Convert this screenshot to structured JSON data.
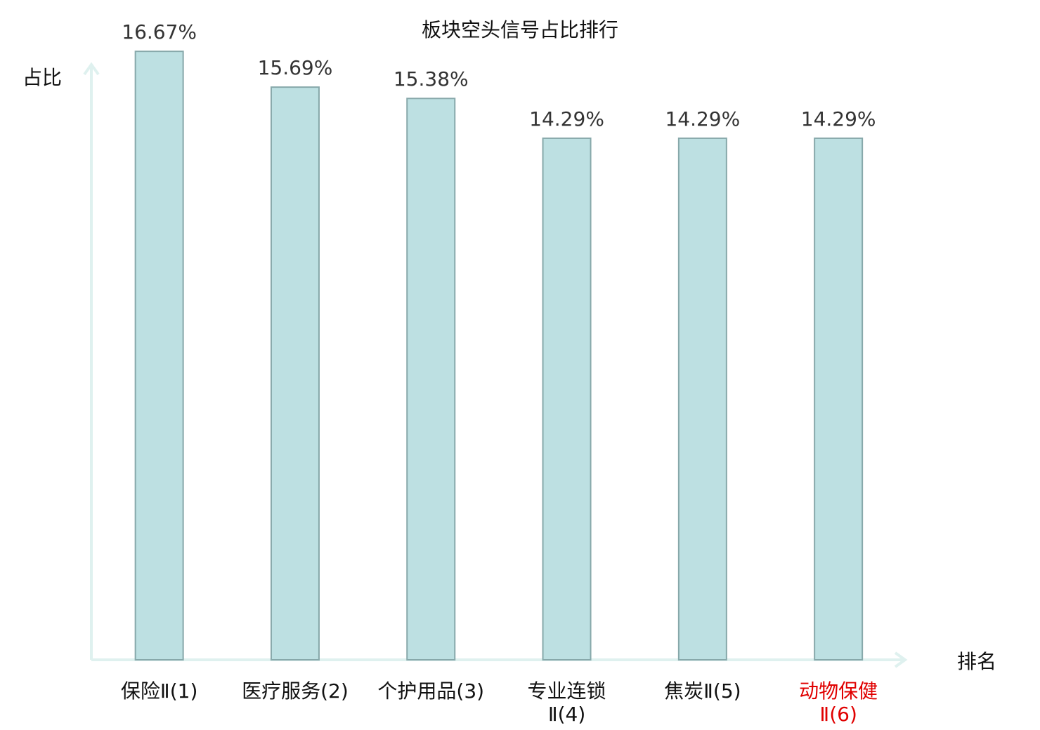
{
  "chart_data": {
    "type": "bar",
    "title": "板块空头信号占比排行",
    "ylabel": "占比",
    "xlabel": "排名",
    "ylim": [
      0,
      17.5
    ],
    "categories": [
      {
        "lines": [
          "保险Ⅱ(1)"
        ],
        "highlight": false
      },
      {
        "lines": [
          "医疗服务(2)"
        ],
        "highlight": false
      },
      {
        "lines": [
          "个护用品(3)"
        ],
        "highlight": false
      },
      {
        "lines": [
          "专业连锁",
          "Ⅱ(4)"
        ],
        "highlight": false
      },
      {
        "lines": [
          "焦炭Ⅱ(5)"
        ],
        "highlight": false
      },
      {
        "lines": [
          "动物保健",
          "Ⅱ(6)"
        ],
        "highlight": true
      }
    ],
    "values": [
      16.67,
      15.69,
      15.38,
      14.29,
      14.29,
      14.29
    ],
    "value_labels": [
      "16.67%",
      "15.69%",
      "15.38%",
      "14.29%",
      "14.29%",
      "14.29%"
    ],
    "colors": {
      "bar_fill": "#bde0e2",
      "bar_stroke": "#87a8aa",
      "axis": "#dff1ef",
      "highlight_label": "#e00000"
    }
  }
}
